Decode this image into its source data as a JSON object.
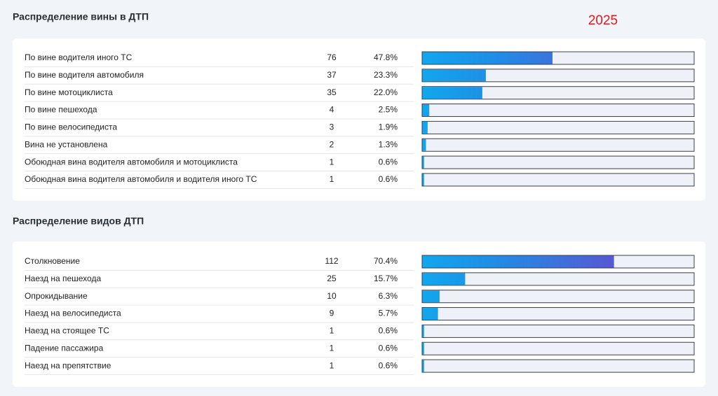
{
  "year": "2025",
  "sections": [
    {
      "title": "Распределение вины в ДТП",
      "xlim": [
        0,
        100
      ],
      "labels": [
        "По вине водителя иного ТС",
        "По вине водителя автомобиля",
        "По вине мотоциклиста",
        "По вине пешехода",
        "По вине велосипедиста",
        "Вина не установлена",
        "Обоюдная вина водителя автомобиля и мотоциклиста",
        "Обоюдная вина водителя автомобиля и водителя иного ТС"
      ],
      "counts": [
        76,
        37,
        35,
        4,
        3,
        2,
        1,
        1
      ],
      "percents": [
        47.8,
        23.3,
        22.0,
        2.5,
        1.9,
        1.3,
        0.6,
        0.6
      ],
      "percent_labels": [
        "47.8%",
        "23.3%",
        "22.0%",
        "2.5%",
        "1.9%",
        "1.3%",
        "0.6%",
        "0.6%"
      ]
    },
    {
      "title": "Распределение видов ДТП",
      "xlim": [
        0,
        100
      ],
      "labels": [
        "Столкновение",
        "Наезд на пешехода",
        "Опрокидывание",
        "Наезд на велосипедиста",
        "Наезд на стоящее ТС",
        "Падение пассажира",
        "Наезд на препятствие"
      ],
      "counts": [
        112,
        25,
        10,
        9,
        1,
        1,
        1
      ],
      "percents": [
        70.4,
        15.7,
        6.3,
        5.7,
        0.6,
        0.6,
        0.6
      ],
      "percent_labels": [
        "70.4%",
        "15.7%",
        "6.3%",
        "5.7%",
        "0.6%",
        "0.6%",
        "0.6%"
      ]
    }
  ]
}
